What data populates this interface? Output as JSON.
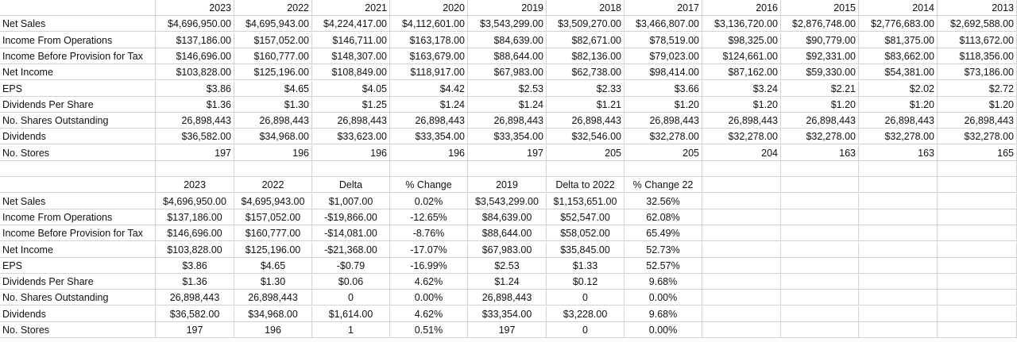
{
  "top_table": {
    "years": [
      "2023",
      "2022",
      "2021",
      "2020",
      "2019",
      "2018",
      "2017",
      "2016",
      "2015",
      "2014",
      "2013"
    ],
    "rows": [
      {
        "label": "Net Sales",
        "values": [
          "$4,696,950.00",
          "$4,695,943.00",
          "$4,224,417.00",
          "$4,112,601.00",
          "$3,543,299.00",
          "$3,509,270.00",
          "$3,466,807.00",
          "$3,136,720.00",
          "$2,876,748.00",
          "$2,776,683.00",
          "$2,692,588.00"
        ]
      },
      {
        "label": "Income From Operations",
        "values": [
          "$137,186.00",
          "$157,052.00",
          "$146,711.00",
          "$163,178.00",
          "$84,639.00",
          "$82,671.00",
          "$78,519.00",
          "$98,325.00",
          "$90,779.00",
          "$81,375.00",
          "$113,672.00"
        ]
      },
      {
        "label": "Income Before Provision for Tax",
        "values": [
          "$146,696.00",
          "$160,777.00",
          "$148,307.00",
          "$163,679.00",
          "$88,644.00",
          "$82,136.00",
          "$79,023.00",
          "$124,661.00",
          "$92,331.00",
          "$83,662.00",
          "$118,356.00"
        ]
      },
      {
        "label": "Net Income",
        "values": [
          "$103,828.00",
          "$125,196.00",
          "$108,849.00",
          "$118,917.00",
          "$67,983.00",
          "$62,738.00",
          "$98,414.00",
          "$87,162.00",
          "$59,330.00",
          "$54,381.00",
          "$73,186.00"
        ]
      },
      {
        "label": "EPS",
        "values": [
          "$3.86",
          "$4.65",
          "$4.05",
          "$4.42",
          "$2.53",
          "$2.33",
          "$3.66",
          "$3.24",
          "$2.21",
          "$2.02",
          "$2.72"
        ]
      },
      {
        "label": "Dividends Per Share",
        "values": [
          "$1.36",
          "$1.30",
          "$1.25",
          "$1.24",
          "$1.24",
          "$1.21",
          "$1.20",
          "$1.20",
          "$1.20",
          "$1.20",
          "$1.20"
        ]
      },
      {
        "label": "No. Shares Outstanding",
        "values": [
          "26,898,443",
          "26,898,443",
          "26,898,443",
          "26,898,443",
          "26,898,443",
          "26,898,443",
          "26,898,443",
          "26,898,443",
          "26,898,443",
          "26,898,443",
          "26,898,443"
        ]
      },
      {
        "label": "Dividends",
        "values": [
          "$36,582.00",
          "$34,968.00",
          "$33,623.00",
          "$33,354.00",
          "$33,354.00",
          "$32,546.00",
          "$32,278.00",
          "$32,278.00",
          "$32,278.00",
          "$32,278.00",
          "$32,278.00"
        ]
      },
      {
        "label": "No. Stores",
        "values": [
          "197",
          "196",
          "196",
          "196",
          "197",
          "205",
          "205",
          "204",
          "163",
          "163",
          "165"
        ]
      }
    ]
  },
  "bottom_table": {
    "headers": [
      "2023",
      "2022",
      "Delta",
      "% Change",
      "2019",
      "Delta to 2022",
      "% Change 22"
    ],
    "rows": [
      {
        "label": "Net Sales",
        "values": [
          "$4,696,950.00",
          "$4,695,943.00",
          "$1,007.00",
          "0.02%",
          "$3,543,299.00",
          "$1,153,651.00",
          "32.56%"
        ]
      },
      {
        "label": "Income From Operations",
        "values": [
          "$137,186.00",
          "$157,052.00",
          "-$19,866.00",
          "-12.65%",
          "$84,639.00",
          "$52,547.00",
          "62.08%"
        ]
      },
      {
        "label": "Income Before Provision for Tax",
        "values": [
          "$146,696.00",
          "$160,777.00",
          "-$14,081.00",
          "-8.76%",
          "$88,644.00",
          "$58,052.00",
          "65.49%"
        ]
      },
      {
        "label": "Net Income",
        "values": [
          "$103,828.00",
          "$125,196.00",
          "-$21,368.00",
          "-17.07%",
          "$67,983.00",
          "$35,845.00",
          "52.73%"
        ]
      },
      {
        "label": "EPS",
        "values": [
          "$3.86",
          "$4.65",
          "-$0.79",
          "-16.99%",
          "$2.53",
          "$1.33",
          "52.57%"
        ]
      },
      {
        "label": "Dividends Per Share",
        "values": [
          "$1.36",
          "$1.30",
          "$0.06",
          "4.62%",
          "$1.24",
          "$0.12",
          "9.68%"
        ]
      },
      {
        "label": "No. Shares Outstanding",
        "values": [
          "26,898,443",
          "26,898,443",
          "0",
          "0.00%",
          "26,898,443",
          "0",
          "0.00%"
        ]
      },
      {
        "label": "Dividends",
        "values": [
          "$36,582.00",
          "$34,968.00",
          "$1,614.00",
          "4.62%",
          "$33,354.00",
          "$3,228.00",
          "9.68%"
        ]
      },
      {
        "label": "No. Stores",
        "values": [
          "197",
          "196",
          "1",
          "0.51%",
          "197",
          "0",
          "0.00%"
        ]
      }
    ]
  }
}
